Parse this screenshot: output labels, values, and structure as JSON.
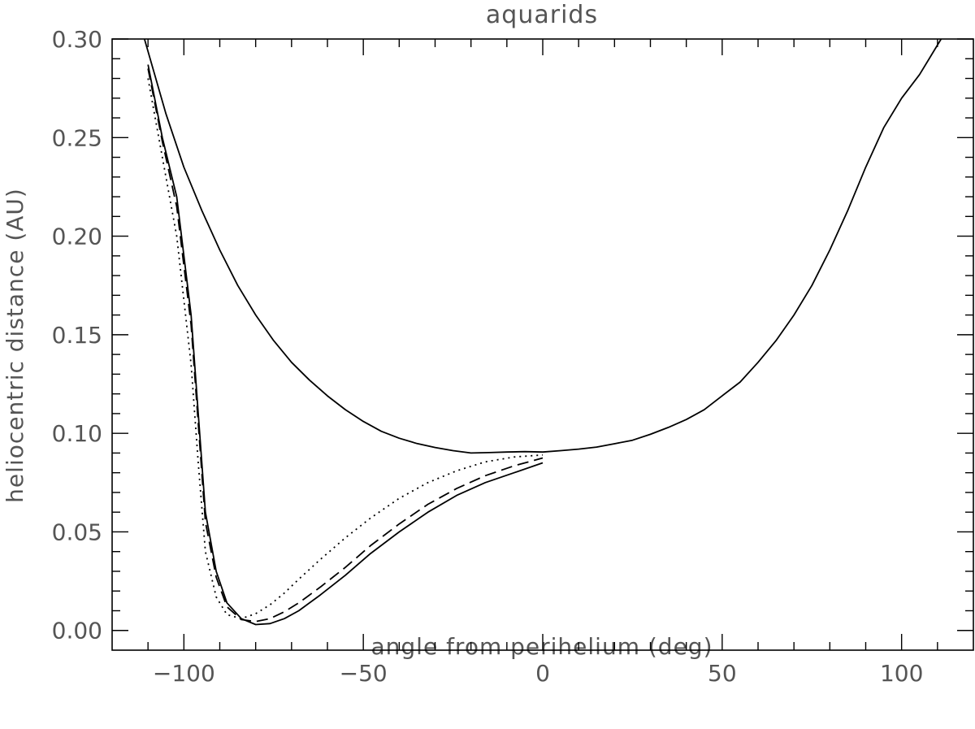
{
  "chart_data": {
    "type": "line",
    "title": "aquarids",
    "xlabel": "angle from perihelium (deg)",
    "ylabel": "heliocentric distance (AU)",
    "xlim": [
      -120,
      120
    ],
    "ylim": [
      -0.01,
      0.3
    ],
    "x_major_ticks": [
      -100,
      -50,
      0,
      50,
      100
    ],
    "x_tick_labels": [
      "−100",
      "−50",
      "0",
      "50",
      "100"
    ],
    "y_major_ticks": [
      0.0,
      0.05,
      0.1,
      0.15,
      0.2,
      0.25,
      0.3
    ],
    "y_tick_labels": [
      "0.00",
      "0.05",
      "0.10",
      "0.15",
      "0.20",
      "0.25",
      "0.30"
    ],
    "grid": false,
    "legend": "none",
    "series": [
      {
        "style": "solid",
        "x": [
          -111,
          -105,
          -100,
          -95,
          -90,
          -85,
          -80,
          -75,
          -70,
          -65,
          -60,
          -55,
          -50,
          -45,
          -40,
          -35,
          -30,
          -25,
          -20,
          -15,
          -10,
          -5,
          0,
          5,
          10,
          15,
          20,
          25,
          30,
          35,
          40,
          45,
          50,
          55,
          60,
          65,
          70,
          75,
          80,
          85,
          90,
          95,
          100,
          105,
          111
        ],
        "y": [
          0.3,
          0.262,
          0.235,
          0.213,
          0.193,
          0.175,
          0.16,
          0.147,
          0.136,
          0.127,
          0.119,
          0.112,
          0.106,
          0.101,
          0.0975,
          0.0948,
          0.0928,
          0.0912,
          0.09,
          0.0902,
          0.0905,
          0.0907,
          0.0905,
          0.0912,
          0.092,
          0.093,
          0.0947,
          0.0965,
          0.0995,
          0.103,
          0.107,
          0.112,
          0.119,
          0.126,
          0.136,
          0.147,
          0.16,
          0.175,
          0.193,
          0.213,
          0.235,
          0.255,
          0.27,
          0.282,
          0.3
        ]
      },
      {
        "style": "solid",
        "x": [
          -110,
          -106,
          -102,
          -98,
          -96,
          -94,
          -91,
          -88,
          -84,
          -80,
          -76,
          -72,
          -68,
          -62,
          -55,
          -48,
          -40,
          -32,
          -24,
          -16,
          -8,
          0
        ],
        "y": [
          0.287,
          0.25,
          0.22,
          0.16,
          0.11,
          0.06,
          0.03,
          0.014,
          0.006,
          0.003,
          0.0035,
          0.006,
          0.01,
          0.018,
          0.028,
          0.039,
          0.05,
          0.06,
          0.0685,
          0.075,
          0.08,
          0.085
        ]
      },
      {
        "style": "dashed",
        "x": [
          -110,
          -106,
          -102,
          -98,
          -96,
          -94,
          -91,
          -88,
          -84,
          -80,
          -76,
          -72,
          -68,
          -62,
          -55,
          -48,
          -40,
          -32,
          -24,
          -16,
          -8,
          0
        ],
        "y": [
          0.285,
          0.248,
          0.215,
          0.155,
          0.105,
          0.055,
          0.027,
          0.012,
          0.0055,
          0.0045,
          0.006,
          0.0095,
          0.014,
          0.022,
          0.032,
          0.043,
          0.054,
          0.064,
          0.072,
          0.0785,
          0.0835,
          0.0875
        ]
      },
      {
        "style": "dotted",
        "x": [
          -110,
          -106,
          -102,
          -98,
          -96,
          -94,
          -91,
          -88,
          -84,
          -80,
          -76,
          -72,
          -68,
          -62,
          -55,
          -48,
          -40,
          -32,
          -24,
          -16,
          -8,
          0
        ],
        "y": [
          0.28,
          0.24,
          0.2,
          0.135,
          0.085,
          0.04,
          0.017,
          0.008,
          0.006,
          0.0085,
          0.013,
          0.019,
          0.026,
          0.036,
          0.047,
          0.057,
          0.067,
          0.075,
          0.081,
          0.0855,
          0.088,
          0.089
        ]
      }
    ]
  }
}
